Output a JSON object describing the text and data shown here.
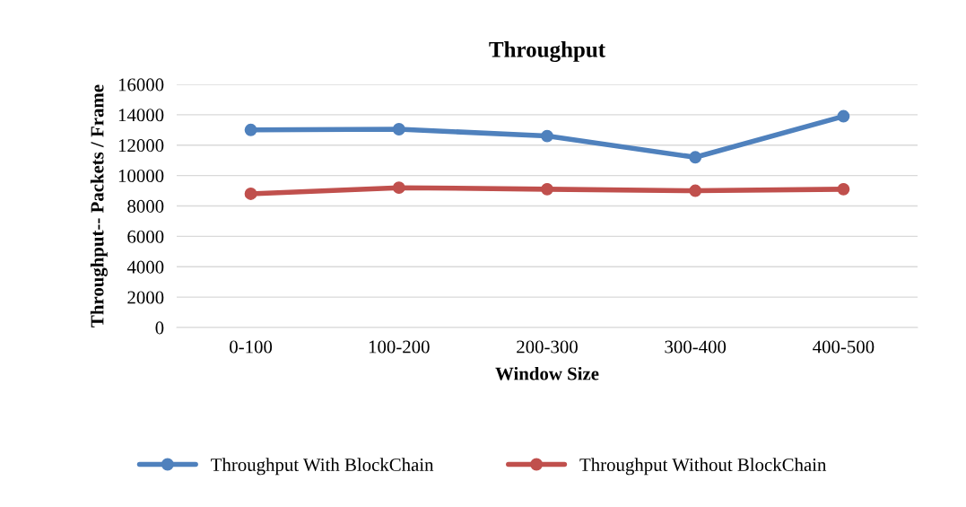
{
  "chart_data": {
    "type": "line",
    "title": "Throughput",
    "xlabel": "Window Size",
    "ylabel": "Throughput-- Packets / Frame",
    "categories": [
      "0-100",
      "100-200",
      "200-300",
      "300-400",
      "400-500"
    ],
    "series": [
      {
        "name": "Throughput With BlockChain",
        "color": "#4f81bd",
        "values": [
          13000,
          13050,
          12600,
          11200,
          13900
        ]
      },
      {
        "name": "Throughput Without BlockChain",
        "color": "#c0504d",
        "values": [
          8800,
          9200,
          9100,
          9000,
          9100
        ]
      }
    ],
    "ylim": [
      0,
      16000
    ],
    "yticks": [
      0,
      2000,
      4000,
      6000,
      8000,
      10000,
      12000,
      14000,
      16000
    ],
    "grid": "y",
    "legend": "bottom",
    "marker": "circle",
    "line_style": "solid"
  }
}
